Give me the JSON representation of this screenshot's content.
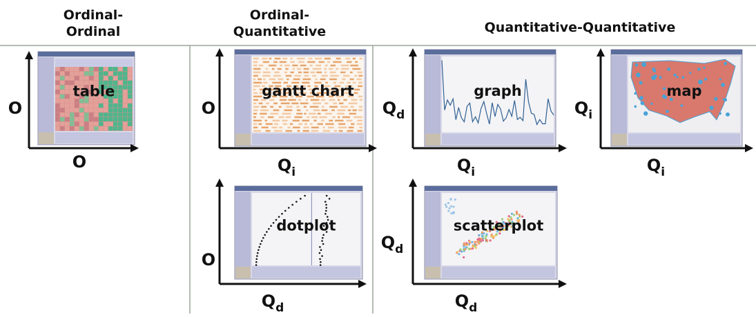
{
  "columns": [
    {
      "title_lines": [
        "Ordinal-",
        "Ordinal"
      ]
    },
    {
      "title_lines": [
        "Ordinal-",
        "Quantitative"
      ]
    },
    {
      "title_lines": [
        "Quantitative-Quantitative"
      ]
    }
  ],
  "panels": [
    {
      "label": "table",
      "y_axis": {
        "letter": "O"
      },
      "x_axis": {
        "letter": "O"
      }
    },
    {
      "label": "gantt chart",
      "y_axis": {
        "letter": "O"
      },
      "x_axis": {
        "letter": "Q",
        "sub": "i"
      }
    },
    {
      "label": "graph",
      "y_axis": {
        "letter": "Q",
        "sub": "d"
      },
      "x_axis": {
        "letter": "Q",
        "sub": "i"
      }
    },
    {
      "label": "map",
      "y_axis": {
        "letter": "Q",
        "sub": "i"
      },
      "x_axis": {
        "letter": "Q",
        "sub": "i"
      }
    },
    {
      "label": "dotplot",
      "y_axis": {
        "letter": "O"
      },
      "x_axis": {
        "letter": "Q",
        "sub": "d"
      }
    },
    {
      "label": "scatterplot",
      "y_axis": {
        "letter": "Q",
        "sub": "d"
      },
      "x_axis": {
        "letter": "Q",
        "sub": "d"
      }
    }
  ]
}
